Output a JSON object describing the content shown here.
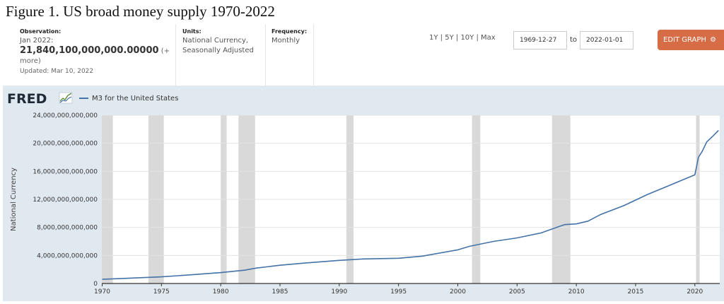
{
  "figure_title": "Figure 1. US broad money supply 1970-2022",
  "observation": {
    "label": "Observation:",
    "date": "Jan 2022:",
    "value": "21,840,100,000,000.00000",
    "more": "(+ more)",
    "updated": "Updated: Mar 10, 2022"
  },
  "units": {
    "label": "Units:",
    "value": "National Currency, Seasonally Adjusted"
  },
  "frequency": {
    "label": "Frequency:",
    "value": "Monthly"
  },
  "ranges": [
    "1Y",
    "5Y",
    "10Y",
    "Max"
  ],
  "date_from": "1969-12-27",
  "to_label": "to",
  "date_to": "2022-01-01",
  "edit_button": "EDIT GRAPH",
  "icons": {
    "edit": "gear-icon",
    "logo": "fred-logo",
    "logo_mark": "chart-line-icon"
  },
  "colors": {
    "line": "#4572a7",
    "recession": "#d9d9d9",
    "plot_bg": "#ffffff",
    "frame_bg": "#e1e9f0",
    "button": "#d66d47"
  },
  "logo_text": "FRED",
  "chart_data": {
    "type": "line",
    "title": "",
    "xlabel": "",
    "ylabel": "National Currency",
    "xlim": [
      1969.97,
      2022.1
    ],
    "ylim": [
      0,
      24000000000000
    ],
    "grid": "horizontal",
    "legend": "top-left",
    "x_ticks": [
      "1970",
      "1975",
      "1980",
      "1985",
      "1990",
      "1995",
      "2000",
      "2005",
      "2010",
      "2015",
      "2020"
    ],
    "y_ticks": [
      "0",
      "4,000,000,000,000",
      "8,000,000,000,000",
      "12,000,000,000,000",
      "16,000,000,000,000",
      "20,000,000,000,000",
      "24,000,000,000,000"
    ],
    "recessions": [
      [
        1969.95,
        1970.9
      ],
      [
        1973.9,
        1975.2
      ],
      [
        1980.0,
        1980.5
      ],
      [
        1981.5,
        1982.9
      ],
      [
        1990.6,
        1991.2
      ],
      [
        2001.2,
        2001.9
      ],
      [
        2007.95,
        2009.5
      ],
      [
        2020.1,
        2020.4
      ]
    ],
    "series": [
      {
        "name": "M3 for the United States",
        "x": [
          1970,
          1972,
          1975,
          1978,
          1980,
          1982,
          1983,
          1985,
          1987,
          1990,
          1992,
          1995,
          1997,
          2000,
          2001,
          2003,
          2005,
          2007,
          2008,
          2009,
          2010,
          2011,
          2012,
          2014,
          2016,
          2018,
          2019,
          2020.0,
          2020.3,
          2020.6,
          2021.0,
          2021.5,
          2022.0
        ],
        "y": [
          600000000000,
          740000000000,
          950000000000,
          1300000000000,
          1550000000000,
          1900000000000,
          2200000000000,
          2600000000000,
          2900000000000,
          3300000000000,
          3500000000000,
          3600000000000,
          3900000000000,
          4800000000000,
          5300000000000,
          6000000000000,
          6500000000000,
          7200000000000,
          7800000000000,
          8400000000000,
          8500000000000,
          8900000000000,
          9800000000000,
          11100000000000,
          12700000000000,
          14100000000000,
          14800000000000,
          15500000000000,
          18000000000000,
          18800000000000,
          20200000000000,
          21000000000000,
          21840100000000
        ]
      }
    ]
  }
}
